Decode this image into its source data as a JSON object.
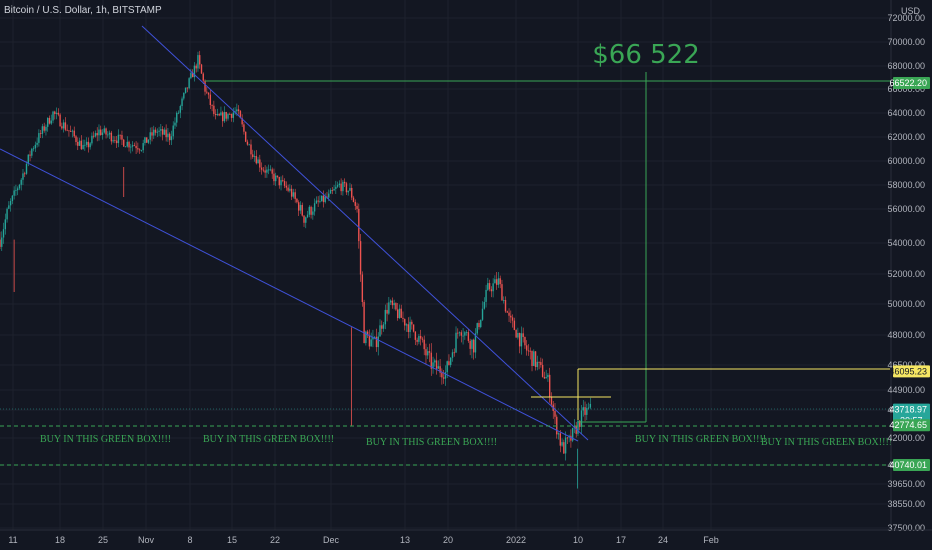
{
  "header": {
    "title": "Bitcoin / U.S. Dollar, 1h, BITSTAMP",
    "currency": "USD"
  },
  "colors": {
    "background": "#131722",
    "up": "#26a69a",
    "down": "#ef5350",
    "trendline": "#3f51d8",
    "annotation_green": "#3aa655",
    "annotation_yellow": "#f5e663",
    "grid": "#1e222d"
  },
  "chart_data": {
    "type": "candlestick",
    "title": "Bitcoin / U.S. Dollar, 1h, BITSTAMP",
    "ylabel": "USD",
    "ylim": [
      37500,
      72000
    ],
    "y_ticks": [
      "72000.00",
      "70000.00",
      "68000.00",
      "66000.00",
      "64000.00",
      "62000.00",
      "60000.00",
      "58000.00",
      "56000.00",
      "54000.00",
      "52000.00",
      "50000.00",
      "48000.00",
      "46500.00",
      "44900.00",
      "43700.00",
      "42000.00",
      "40740.00",
      "39650.00",
      "38550.00",
      "37500.00"
    ],
    "x_ticks": [
      "11",
      "18",
      "25",
      "Nov",
      "8",
      "15",
      "22",
      "Dec",
      "13",
      "20",
      "2022",
      "10",
      "17",
      "24",
      "Feb"
    ],
    "price_path": [
      [
        0,
        54200
      ],
      [
        1.5,
        56500
      ],
      [
        3,
        58500
      ],
      [
        4.5,
        61000
      ],
      [
        6,
        62500
      ],
      [
        7.5,
        64000
      ],
      [
        9,
        63000
      ],
      [
        10.5,
        62000
      ],
      [
        12,
        61000
      ],
      [
        14,
        62500
      ],
      [
        16,
        62000
      ],
      [
        18,
        61500
      ],
      [
        20,
        61200
      ],
      [
        22,
        62500
      ],
      [
        24,
        62000
      ],
      [
        25.5,
        64500
      ],
      [
        27,
        67000
      ],
      [
        28,
        68500
      ],
      [
        29,
        66000
      ],
      [
        30.5,
        63500
      ],
      [
        32,
        63800
      ],
      [
        33.5,
        64200
      ],
      [
        35,
        61500
      ],
      [
        37,
        59500
      ],
      [
        39,
        58500
      ],
      [
        41,
        57500
      ],
      [
        43,
        55500
      ],
      [
        45,
        56500
      ],
      [
        46.5,
        57000
      ],
      [
        48,
        58000
      ],
      [
        49.5,
        57500
      ],
      [
        50.5,
        56000
      ],
      [
        51.5,
        48000
      ],
      [
        53,
        47500
      ],
      [
        55,
        50000
      ],
      [
        57,
        49000
      ],
      [
        59,
        48000
      ],
      [
        61,
        46500
      ],
      [
        63,
        46000
      ],
      [
        65,
        48500
      ],
      [
        67,
        47500
      ],
      [
        69,
        51000
      ],
      [
        70.5,
        51500
      ],
      [
        72,
        49000
      ],
      [
        74,
        47500
      ],
      [
        76,
        46500
      ],
      [
        77.5,
        45500
      ],
      [
        78.5,
        43000
      ],
      [
        79.5,
        41500
      ],
      [
        80.5,
        41800
      ],
      [
        81.5,
        42600
      ],
      [
        82.5,
        43500
      ],
      [
        83.5,
        43719
      ]
    ],
    "levels": [
      {
        "label": "66522.20",
        "value": 66522.2,
        "color": "green"
      },
      {
        "label": "46095.23",
        "value": 46095.23,
        "color": "yellow"
      },
      {
        "label": "43718.97",
        "sublabel": "20:57",
        "value": 43718.97,
        "color": "teal"
      },
      {
        "label": "42774.65",
        "value": 42774.65,
        "color": "green"
      },
      {
        "label": "40740.01",
        "value": 40740.01,
        "color": "green"
      }
    ],
    "annotations": {
      "target": "$66 522",
      "box_label": "BUY IN THIS GREEN BOX!!!!"
    }
  }
}
